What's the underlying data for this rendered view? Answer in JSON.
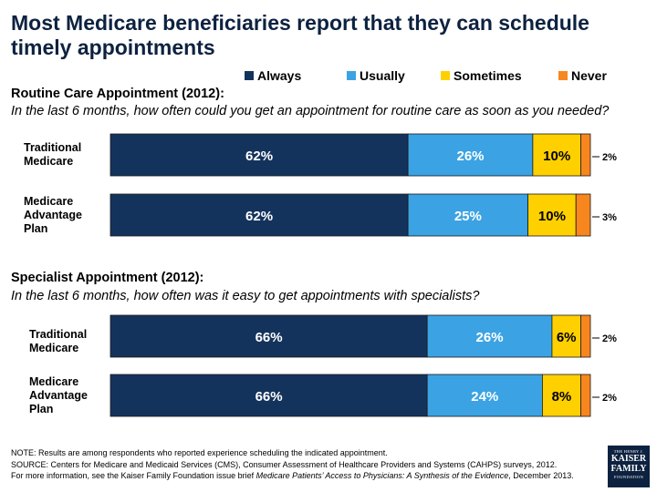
{
  "title": "Most Medicare beneficiaries report that they can schedule timely appointments",
  "legend": [
    {
      "label": "Always",
      "color": "#14335c"
    },
    {
      "label": "Usually",
      "color": "#3ba3e3"
    },
    {
      "label": "Sometimes",
      "color": "#ffd000"
    },
    {
      "label": "Never",
      "color": "#f7861f"
    }
  ],
  "sections": [
    {
      "heading": "Routine Care Appointment (2012):",
      "question": "In the last 6 months, how often could you get an appointment for routine care as soon as you needed?"
    },
    {
      "heading": "Specialist Appointment (2012):",
      "question": "In the last 6 months, how often was it easy to get appointments with specialists?"
    }
  ],
  "row_labels": [
    [
      "Traditional",
      "Medicare"
    ],
    [
      "Medicare",
      "Advantage",
      "Plan"
    ],
    [
      "Traditional",
      "Medicare"
    ],
    [
      "Medicare",
      "Advantage",
      "Plan"
    ]
  ],
  "chart_data": {
    "type": "bar",
    "orientation": "horizontal",
    "stacked": true,
    "categories": [
      "Traditional Medicare",
      "Medicare Advantage Plan",
      "Traditional Medicare",
      "Medicare Advantage Plan"
    ],
    "series": [
      {
        "name": "Always",
        "values": [
          62,
          62,
          66,
          66
        ],
        "labels": [
          "62%",
          "62%",
          "66%",
          "66%"
        ]
      },
      {
        "name": "Usually",
        "values": [
          26,
          25,
          26,
          24
        ],
        "labels": [
          "26%",
          "25%",
          "26%",
          "24%"
        ]
      },
      {
        "name": "Sometimes",
        "values": [
          10,
          10,
          6,
          8
        ],
        "labels": [
          "10%",
          "10%",
          "6%",
          "8%"
        ]
      },
      {
        "name": "Never",
        "values": [
          2,
          3,
          2,
          2
        ],
        "labels": [
          "2%",
          "3%",
          "2%",
          "2%"
        ]
      }
    ]
  },
  "footnote": {
    "line1": "NOTE: Results are among respondents who reported experience scheduling the indicated appointment.",
    "line2": "SOURCE: Centers for Medicare and Medicaid Services (CMS), Consumer Assessment of Healthcare Providers and Systems (CAHPS) surveys, 2012.",
    "line3_prefix": "For more information, see the Kaiser Family Foundation issue brief ",
    "line3_italic": "Medicare Patients’ Access to Physicians: A Synthesis of the Evidence",
    "line3_suffix": ", December 2013."
  },
  "logo": {
    "line1": "THE HENRY J.",
    "line2a": "KAISER",
    "line2b": "FAMILY",
    "line3": "FOUNDATION"
  }
}
